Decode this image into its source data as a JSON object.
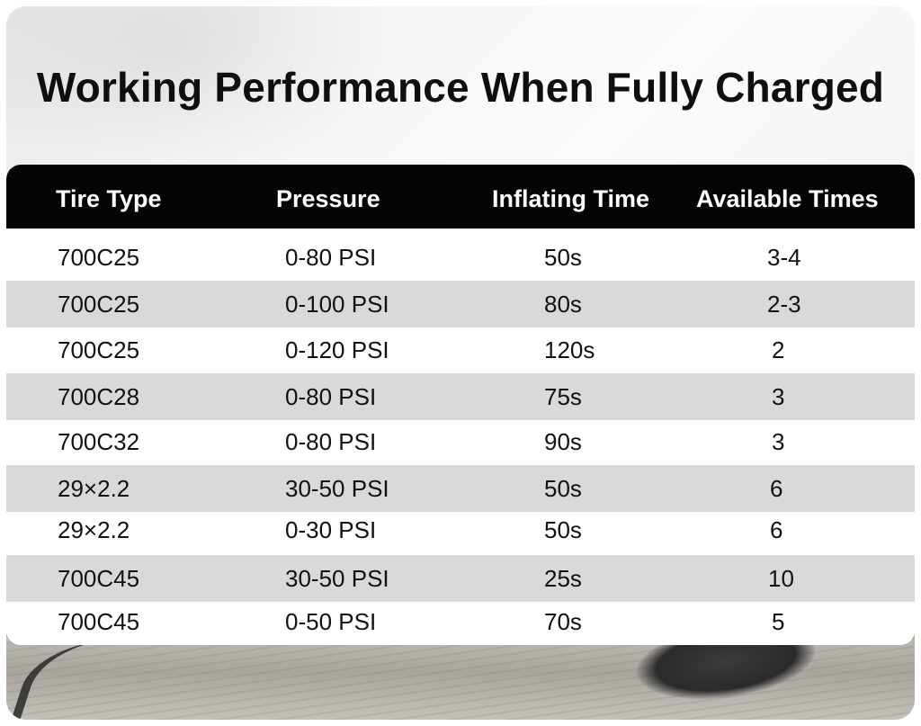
{
  "title": "Working Performance When Fully Charged",
  "table": {
    "columns": [
      "Tire Type",
      "Pressure",
      "Inflating Time",
      "Available Times"
    ],
    "rows": [
      [
        "700C25",
        "0-80 PSI",
        "50s",
        "3-4"
      ],
      [
        "700C25",
        "0-100 PSI",
        "80s",
        "2-3"
      ],
      [
        "700C25",
        "0-120 PSI",
        "120s",
        "2"
      ],
      [
        "700C28",
        "0-80 PSI",
        "75s",
        "3"
      ],
      [
        "700C32",
        "0-80 PSI",
        "90s",
        "3"
      ],
      [
        "29×2.2",
        "30-50 PSI",
        "50s",
        "6"
      ],
      [
        "29×2.2",
        "0-30 PSI",
        "50s",
        "6"
      ],
      [
        "700C45",
        "30-50 PSI",
        "25s",
        "10"
      ],
      [
        "700C45",
        "0-50 PSI",
        "70s",
        "5"
      ]
    ]
  },
  "colors": {
    "header_bg": "#050505",
    "header_text": "#ffffff",
    "row_shade": "#d9d9d9",
    "row_plain": "#ffffff",
    "title_text": "#0e0e0e"
  }
}
